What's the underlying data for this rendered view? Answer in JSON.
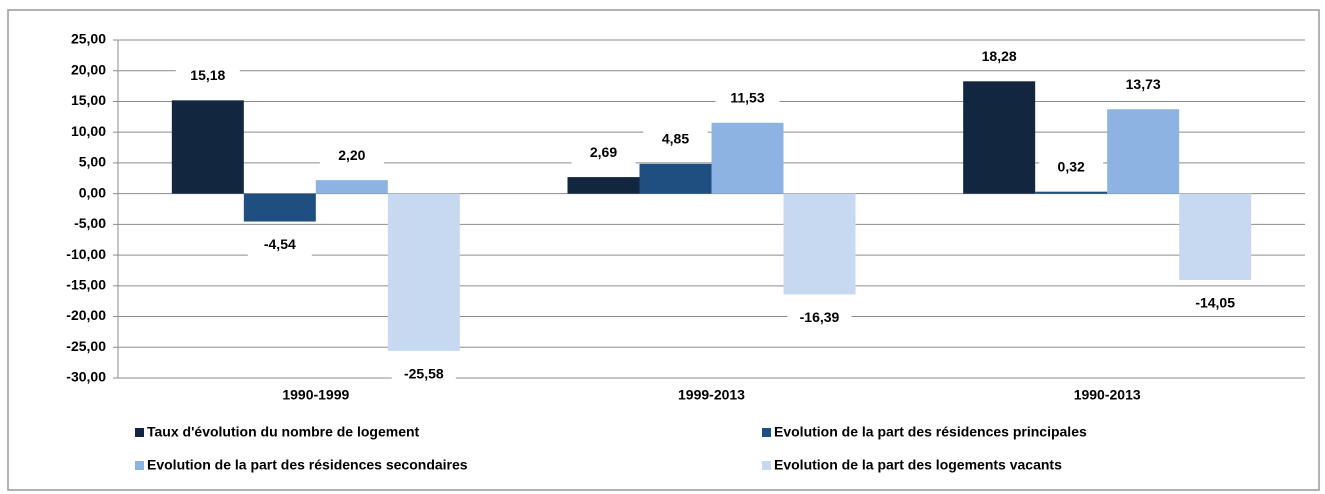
{
  "chart_data": {
    "type": "bar",
    "categories": [
      "1990-1999",
      "1999-2013",
      "1990-2013"
    ],
    "series": [
      {
        "name": "Taux d'évolution du nombre de logement",
        "color": "#12263f",
        "values": [
          15.18,
          2.69,
          18.28
        ],
        "value_labels": [
          "15,18",
          "2,69",
          "18,28"
        ]
      },
      {
        "name": "Evolution de la part des résidences principales",
        "color": "#1f4e80",
        "values": [
          -4.54,
          4.85,
          0.32
        ],
        "value_labels": [
          "-4,54",
          "4,85",
          "0,32"
        ]
      },
      {
        "name": "Evolution de la part des résidences secondaires",
        "color": "#8db3e2",
        "values": [
          2.2,
          11.53,
          13.73
        ],
        "value_labels": [
          "2,20",
          "11,53",
          "13,73"
        ]
      },
      {
        "name": "Evolution de la part des logements vacants",
        "color": "#c6d9f1",
        "values": [
          -25.58,
          -16.39,
          -14.05
        ],
        "value_labels": [
          "-25,58",
          "-16,39",
          "-14,05"
        ]
      }
    ],
    "ylim": [
      -30,
      25
    ],
    "yticks": [
      {
        "value": 25,
        "label": "25,00"
      },
      {
        "value": 20,
        "label": "20,00"
      },
      {
        "value": 15,
        "label": "15,00"
      },
      {
        "value": 10,
        "label": "10,00"
      },
      {
        "value": 5,
        "label": "5,00"
      },
      {
        "value": 0,
        "label": "0,00"
      },
      {
        "value": -5,
        "label": "-5,00"
      },
      {
        "value": -10,
        "label": "-10,00"
      },
      {
        "value": -15,
        "label": "-15,00"
      },
      {
        "value": -20,
        "label": "-20,00"
      },
      {
        "value": -25,
        "label": "-25,00"
      },
      {
        "value": -30,
        "label": "-30,00"
      }
    ],
    "grid": true,
    "legend": "bottom"
  }
}
